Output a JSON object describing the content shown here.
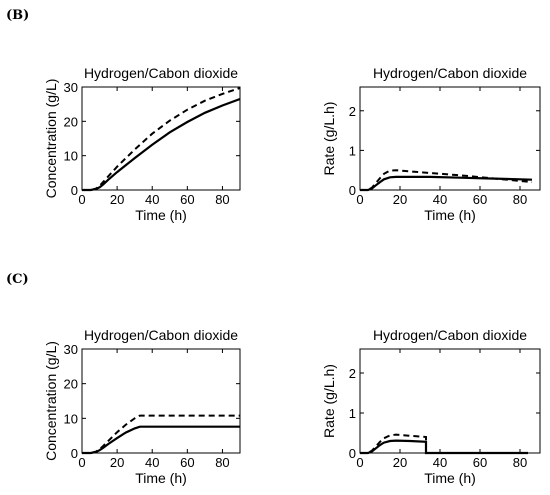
{
  "panels": [
    {
      "label": "(B)"
    },
    {
      "label": "(C)"
    }
  ],
  "chart_data": [
    {
      "type": "line",
      "panel": "(B)",
      "title": "Hydrogen/Cabon dioxide",
      "xlabel": "Time (h)",
      "ylabel": "Concentration (g/L)",
      "xlim": [
        0,
        90
      ],
      "ylim": [
        0,
        30
      ],
      "xticks": [
        0,
        20,
        40,
        60,
        80
      ],
      "yticks": [
        0,
        10,
        20,
        30
      ],
      "series": [
        {
          "style": "solid",
          "x": [
            0,
            5,
            8,
            10,
            12,
            15,
            20,
            30,
            40,
            50,
            60,
            70,
            80,
            90
          ],
          "y": [
            0,
            0,
            0.3,
            0.8,
            1.6,
            3.0,
            5.2,
            9.3,
            13.2,
            16.8,
            19.8,
            22.5,
            24.6,
            26.5
          ]
        },
        {
          "style": "dashed",
          "x": [
            0,
            5,
            8,
            10,
            12,
            15,
            20,
            30,
            40,
            50,
            60,
            70,
            80,
            90
          ],
          "y": [
            0,
            0,
            0.4,
            1.2,
            2.3,
            4.0,
            6.8,
            11.8,
            16.4,
            20.2,
            23.4,
            26.0,
            28.0,
            29.7
          ]
        }
      ]
    },
    {
      "type": "line",
      "panel": "(B)",
      "title": "Hydrogen/Cabon dioxide",
      "xlabel": "Time (h)",
      "ylabel": "Rate (g/L.h)",
      "xlim": [
        0,
        90
      ],
      "ylim": [
        0,
        2.6
      ],
      "xticks": [
        0,
        20,
        40,
        60,
        80
      ],
      "yticks": [
        0,
        1,
        2
      ],
      "series": [
        {
          "style": "solid",
          "x": [
            0,
            4,
            6,
            8,
            10,
            12,
            15,
            18,
            25,
            35,
            50,
            65,
            80,
            86
          ],
          "y": [
            0,
            0,
            0.04,
            0.12,
            0.2,
            0.27,
            0.32,
            0.33,
            0.33,
            0.33,
            0.31,
            0.29,
            0.27,
            0.26
          ]
        },
        {
          "style": "dashed",
          "x": [
            0,
            4,
            6,
            8,
            10,
            12,
            15,
            18,
            25,
            35,
            50,
            65,
            80,
            86
          ],
          "y": [
            0,
            0,
            0.06,
            0.18,
            0.3,
            0.41,
            0.49,
            0.5,
            0.47,
            0.43,
            0.37,
            0.3,
            0.23,
            0.2
          ]
        }
      ]
    },
    {
      "type": "line",
      "panel": "(C)",
      "title": "Hydrogen/Cabon dioxide",
      "xlabel": "Time (h)",
      "ylabel": "Concentration (g/L)",
      "xlim": [
        0,
        90
      ],
      "ylim": [
        0,
        30
      ],
      "xticks": [
        0,
        20,
        40,
        60,
        80
      ],
      "yticks": [
        0,
        10,
        20,
        30
      ],
      "series": [
        {
          "style": "solid",
          "x": [
            0,
            5,
            8,
            10,
            12,
            15,
            20,
            25,
            30,
            33,
            40,
            60,
            90
          ],
          "y": [
            0,
            0,
            0.3,
            0.8,
            1.5,
            2.6,
            4.3,
            5.9,
            7.1,
            7.6,
            7.6,
            7.6,
            7.6
          ]
        },
        {
          "style": "dashed",
          "x": [
            0,
            5,
            8,
            10,
            12,
            15,
            20,
            25,
            30,
            33,
            40,
            60,
            90
          ],
          "y": [
            0,
            0,
            0.4,
            1.1,
            2.0,
            3.5,
            6.0,
            8.2,
            10.0,
            10.8,
            10.8,
            10.8,
            10.8
          ]
        }
      ]
    },
    {
      "type": "line",
      "panel": "(C)",
      "title": "Hydrogen/Cabon dioxide",
      "xlabel": "Time (h)",
      "ylabel": "Rate (g/L.h)",
      "xlim": [
        0,
        90
      ],
      "ylim": [
        0,
        2.6
      ],
      "xticks": [
        0,
        20,
        40,
        60,
        80
      ],
      "yticks": [
        0,
        1,
        2
      ],
      "series": [
        {
          "style": "solid",
          "x": [
            0,
            4,
            6,
            8,
            10,
            12,
            15,
            18,
            25,
            33,
            33.01,
            50,
            70,
            84
          ],
          "y": [
            0,
            0,
            0.04,
            0.12,
            0.2,
            0.26,
            0.3,
            0.31,
            0.3,
            0.28,
            0,
            0,
            0,
            0
          ]
        },
        {
          "style": "dashed",
          "x": [
            0,
            4,
            6,
            8,
            10,
            12,
            15,
            18,
            25,
            33,
            33.01,
            50,
            70,
            84
          ],
          "y": [
            0,
            0,
            0.06,
            0.17,
            0.28,
            0.37,
            0.44,
            0.46,
            0.43,
            0.4,
            0,
            0,
            0,
            0
          ]
        }
      ]
    }
  ]
}
